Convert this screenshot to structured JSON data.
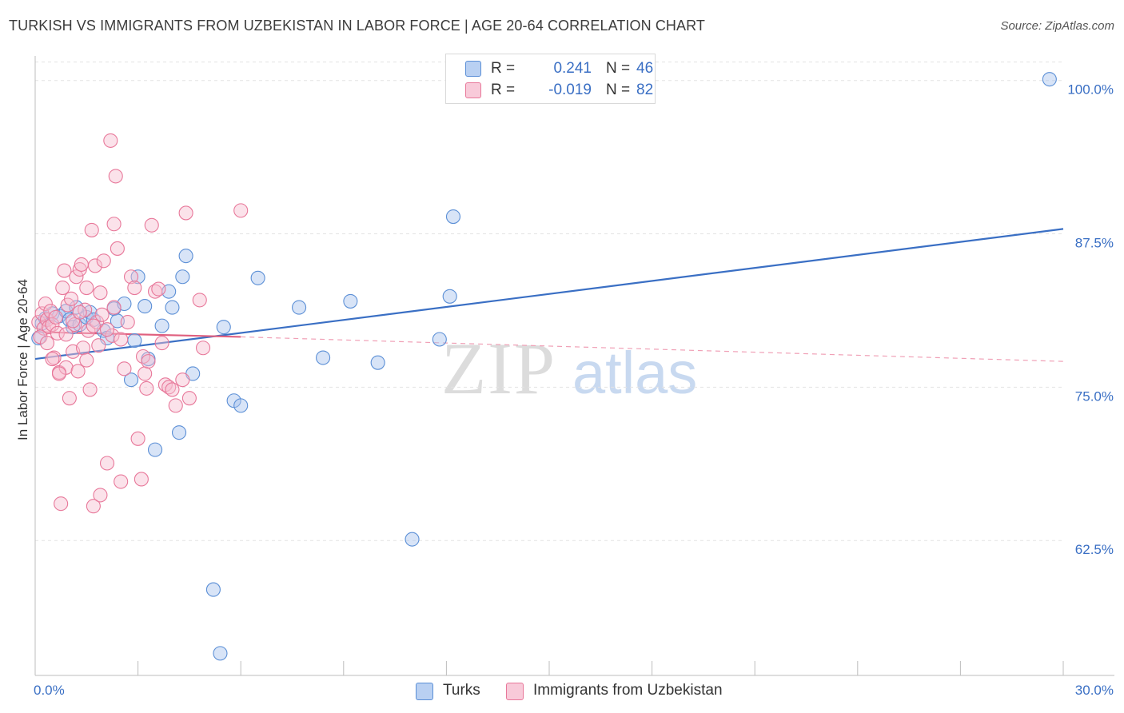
{
  "header": {
    "title": "TURKISH VS IMMIGRANTS FROM UZBEKISTAN IN LABOR FORCE | AGE 20-64 CORRELATION CHART",
    "source": "Source: ZipAtlas.com"
  },
  "watermark": {
    "zip": "ZIP",
    "atlas": "atlas"
  },
  "legend": {
    "r_label": "R =",
    "n_label": "N =",
    "entries": [
      {
        "name": "Turks",
        "r": "0.241",
        "n": "46",
        "color": "#5b8fd6",
        "fill": "#a8c4ee"
      },
      {
        "name": "Immigrants from Uzbekistan",
        "r": "-0.019",
        "n": "82",
        "color": "#e8789a",
        "fill": "#f6bfd0"
      }
    ]
  },
  "chart_data": {
    "type": "scatter",
    "title": "TURKISH VS IMMIGRANTS FROM UZBEKISTAN IN LABOR FORCE | AGE 20-64 CORRELATION CHART",
    "xlabel": "",
    "ylabel": "In Labor Force | Age 20-64",
    "xlim": [
      0,
      30
    ],
    "ylim": [
      51.5,
      102
    ],
    "x_tick_labels": [
      "0.0%",
      "30.0%"
    ],
    "y_ticks": [
      62.5,
      75.0,
      87.5,
      100.0
    ],
    "y_tick_labels": [
      "62.5%",
      "75.0%",
      "87.5%",
      "100.0%"
    ],
    "grid": true,
    "series": [
      {
        "name": "Turks",
        "color": "#5b8fd6",
        "trend": {
          "x": [
            0,
            30
          ],
          "y": [
            77.3,
            87.9
          ],
          "style": "solid"
        },
        "points": [
          [
            0.2,
            80.2
          ],
          [
            0.3,
            80.6
          ],
          [
            0.5,
            81.0
          ],
          [
            0.7,
            80.8
          ],
          [
            0.9,
            81.2
          ],
          [
            1.0,
            80.5
          ],
          [
            1.1,
            79.9
          ],
          [
            1.2,
            81.5
          ],
          [
            1.3,
            80.1
          ],
          [
            1.5,
            80.7
          ],
          [
            1.6,
            81.1
          ],
          [
            1.7,
            80.5
          ],
          [
            2.0,
            79.6
          ],
          [
            2.1,
            79.0
          ],
          [
            2.3,
            81.4
          ],
          [
            2.4,
            80.4
          ],
          [
            2.6,
            81.8
          ],
          [
            2.8,
            75.6
          ],
          [
            2.9,
            78.8
          ],
          [
            3.0,
            84.0
          ],
          [
            3.2,
            81.6
          ],
          [
            3.3,
            77.3
          ],
          [
            3.5,
            69.9
          ],
          [
            3.7,
            80.0
          ],
          [
            3.9,
            82.8
          ],
          [
            4.0,
            81.5
          ],
          [
            4.2,
            71.3
          ],
          [
            4.3,
            84.0
          ],
          [
            4.4,
            85.7
          ],
          [
            4.6,
            76.1
          ],
          [
            5.2,
            58.5
          ],
          [
            5.4,
            53.3
          ],
          [
            5.5,
            79.9
          ],
          [
            5.8,
            73.9
          ],
          [
            6.0,
            73.5
          ],
          [
            6.5,
            83.9
          ],
          [
            7.7,
            81.5
          ],
          [
            8.4,
            77.4
          ],
          [
            9.2,
            82.0
          ],
          [
            10.0,
            77.0
          ],
          [
            11.0,
            62.6
          ],
          [
            11.8,
            78.9
          ],
          [
            12.1,
            82.4
          ],
          [
            12.2,
            88.9
          ],
          [
            29.6,
            100.1
          ],
          [
            0.1,
            79.0
          ]
        ]
      },
      {
        "name": "Immigrants from Uzbekistan",
        "color": "#e8789a",
        "trend": {
          "x": [
            0,
            6.0
          ],
          "y": [
            79.5,
            79.1
          ],
          "style": "solid",
          "dashed_extension": {
            "x": [
              6.0,
              30
            ],
            "y": [
              79.1,
              77.1
            ]
          }
        },
        "points": [
          [
            0.1,
            80.3
          ],
          [
            0.2,
            81.0
          ],
          [
            0.25,
            79.8
          ],
          [
            0.3,
            81.8
          ],
          [
            0.35,
            80.5
          ],
          [
            0.4,
            79.9
          ],
          [
            0.45,
            81.2
          ],
          [
            0.5,
            80.1
          ],
          [
            0.55,
            77.4
          ],
          [
            0.6,
            80.7
          ],
          [
            0.65,
            79.4
          ],
          [
            0.7,
            76.2
          ],
          [
            0.75,
            65.5
          ],
          [
            0.8,
            83.1
          ],
          [
            0.85,
            84.5
          ],
          [
            0.9,
            76.6
          ],
          [
            0.95,
            81.7
          ],
          [
            1.0,
            74.1
          ],
          [
            1.05,
            82.2
          ],
          [
            1.1,
            77.9
          ],
          [
            1.15,
            80.1
          ],
          [
            1.2,
            84.0
          ],
          [
            1.25,
            76.3
          ],
          [
            1.3,
            84.6
          ],
          [
            1.35,
            85.0
          ],
          [
            1.4,
            78.2
          ],
          [
            1.45,
            81.3
          ],
          [
            1.5,
            83.1
          ],
          [
            1.55,
            79.6
          ],
          [
            1.6,
            74.8
          ],
          [
            1.65,
            87.8
          ],
          [
            1.7,
            65.3
          ],
          [
            1.75,
            84.9
          ],
          [
            1.8,
            80.3
          ],
          [
            1.85,
            78.4
          ],
          [
            1.9,
            66.2
          ],
          [
            1.95,
            80.9
          ],
          [
            2.0,
            85.3
          ],
          [
            2.1,
            68.8
          ],
          [
            2.2,
            95.1
          ],
          [
            2.25,
            79.2
          ],
          [
            2.3,
            88.3
          ],
          [
            2.35,
            92.2
          ],
          [
            2.4,
            86.3
          ],
          [
            2.5,
            67.3
          ],
          [
            2.6,
            76.5
          ],
          [
            2.7,
            80.3
          ],
          [
            2.8,
            84.0
          ],
          [
            2.9,
            83.1
          ],
          [
            3.0,
            70.8
          ],
          [
            3.1,
            67.5
          ],
          [
            3.15,
            77.5
          ],
          [
            3.2,
            76.1
          ],
          [
            3.25,
            74.9
          ],
          [
            3.3,
            77.1
          ],
          [
            3.4,
            88.2
          ],
          [
            3.5,
            82.8
          ],
          [
            3.6,
            83.0
          ],
          [
            3.7,
            78.6
          ],
          [
            3.8,
            75.2
          ],
          [
            3.9,
            75.0
          ],
          [
            4.0,
            74.8
          ],
          [
            4.1,
            73.5
          ],
          [
            4.3,
            75.6
          ],
          [
            4.4,
            89.2
          ],
          [
            4.5,
            74.1
          ],
          [
            4.8,
            82.1
          ],
          [
            4.9,
            78.2
          ],
          [
            6.0,
            89.4
          ],
          [
            0.15,
            79.1
          ],
          [
            0.35,
            78.6
          ],
          [
            0.5,
            77.3
          ],
          [
            0.7,
            76.1
          ],
          [
            0.9,
            79.3
          ],
          [
            1.1,
            80.4
          ],
          [
            1.3,
            81.1
          ],
          [
            1.5,
            77.2
          ],
          [
            1.7,
            80.0
          ],
          [
            1.9,
            82.7
          ],
          [
            2.1,
            79.7
          ],
          [
            2.3,
            81.5
          ],
          [
            2.5,
            78.9
          ]
        ]
      }
    ]
  }
}
